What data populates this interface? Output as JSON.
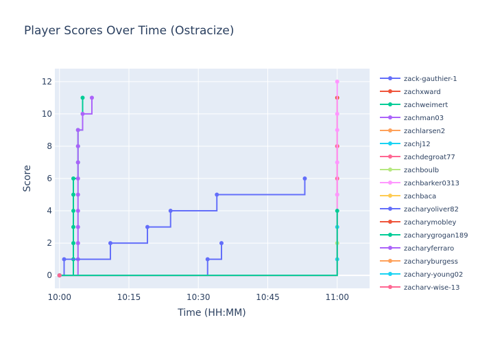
{
  "chart_data": {
    "type": "line",
    "line_shape": "step-after",
    "title": "Player Scores Over Time (Ostracize)",
    "xlabel": "Time (HH:MM)",
    "ylabel": "Score",
    "x_unit": "time HH:MM",
    "xlim": [
      "09:59",
      "11:07"
    ],
    "ylim": [
      -0.8,
      12.8
    ],
    "x_ticks": [
      "10:00",
      "10:15",
      "10:30",
      "10:45",
      "11:00"
    ],
    "y_ticks": [
      0,
      2,
      4,
      6,
      8,
      10,
      12
    ],
    "grid": true,
    "legend_position": "right",
    "plot_background": "#e5ecf6",
    "series": [
      {
        "name": "zack-gauthier-1",
        "color": "#636efa",
        "x": [
          "10:00",
          "10:32",
          "10:35"
        ],
        "y": [
          0,
          1,
          2
        ]
      },
      {
        "name": "zachxward",
        "color": "#ef553b",
        "x": [
          "10:00",
          "11:00",
          "11:00"
        ],
        "y": [
          0,
          8,
          11
        ]
      },
      {
        "name": "zachweimert",
        "color": "#00cc96",
        "x": [
          "10:00",
          "10:03",
          "10:03",
          "10:03",
          "10:03",
          "10:03",
          "10:03",
          "10:04",
          "10:04",
          "10:04",
          "10:05"
        ],
        "y": [
          0,
          1,
          2,
          3,
          4,
          5,
          6,
          7,
          8,
          9,
          11
        ]
      },
      {
        "name": "zachman03",
        "color": "#ab63fa",
        "x": [
          "10:00",
          "10:04",
          "10:04",
          "10:04",
          "10:04",
          "10:04",
          "10:04",
          "10:04",
          "10:04",
          "10:04",
          "10:05",
          "10:07"
        ],
        "y": [
          0,
          1,
          2,
          3,
          4,
          5,
          6,
          7,
          8,
          9,
          10,
          11
        ]
      },
      {
        "name": "zachlarsen2",
        "color": "#ffa15a",
        "x": [
          "10:00"
        ],
        "y": [
          0
        ]
      },
      {
        "name": "zachj12",
        "color": "#19d3f3",
        "x": [
          "10:00",
          "11:00",
          "11:00"
        ],
        "y": [
          0,
          1,
          3
        ]
      },
      {
        "name": "zachdegroat77",
        "color": "#ff6692",
        "x": [
          "10:00",
          "11:00",
          "11:00"
        ],
        "y": [
          0,
          6,
          8
        ]
      },
      {
        "name": "zachboulb",
        "color": "#b6e880",
        "x": [
          "10:00",
          "11:00",
          "11:00"
        ],
        "y": [
          0,
          2,
          5
        ]
      },
      {
        "name": "zachbarker0313",
        "color": "#ff97ff",
        "x": [
          "10:00",
          "11:00",
          "11:00",
          "11:00",
          "11:00",
          "11:00"
        ],
        "y": [
          0,
          5,
          7,
          9,
          10,
          12
        ]
      },
      {
        "name": "zachbaca",
        "color": "#fecb52",
        "x": [
          "10:00"
        ],
        "y": [
          0
        ]
      },
      {
        "name": "zacharyoliver82",
        "color": "#636efa",
        "x": [
          "10:00",
          "10:01",
          "10:11",
          "10:19",
          "10:24",
          "10:34",
          "10:53"
        ],
        "y": [
          0,
          1,
          2,
          3,
          4,
          5,
          6
        ]
      },
      {
        "name": "zacharymobley",
        "color": "#ef553b",
        "x": [
          "10:00"
        ],
        "y": [
          0
        ]
      },
      {
        "name": "zacharygrogan189",
        "color": "#00cc96",
        "x": [
          "10:00",
          "11:00"
        ],
        "y": [
          0,
          4
        ]
      },
      {
        "name": "zacharyferraro",
        "color": "#ab63fa",
        "x": [
          "10:00"
        ],
        "y": [
          0
        ]
      },
      {
        "name": "zacharyburgess",
        "color": "#ffa15a",
        "x": [
          "10:00"
        ],
        "y": [
          0
        ]
      },
      {
        "name": "zachary-young02",
        "color": "#19d3f3",
        "x": [
          "10:00"
        ],
        "y": [
          0
        ]
      },
      {
        "name": "zachary-wise-13",
        "color": "#ff6692",
        "x": [
          "10:00"
        ],
        "y": [
          0
        ]
      }
    ]
  }
}
